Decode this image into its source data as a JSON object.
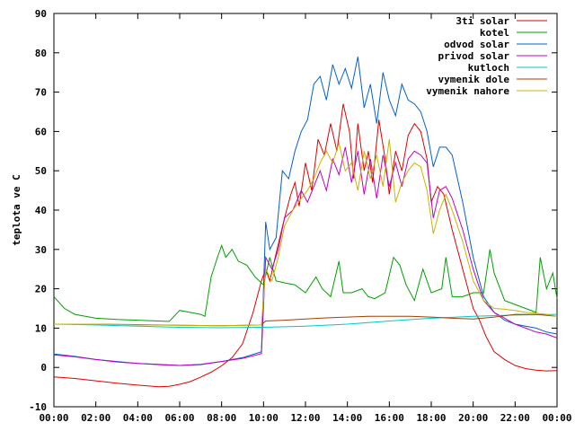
{
  "chart_data": {
    "type": "line",
    "ylabel": "teplota ve C",
    "ylim": [
      -10,
      90
    ],
    "yticks": [
      -10,
      0,
      10,
      20,
      30,
      40,
      50,
      60,
      70,
      80,
      90
    ],
    "xlim": [
      0,
      24
    ],
    "xticks": [
      "00:00",
      "02:00",
      "04:00",
      "06:00",
      "08:00",
      "10:00",
      "12:00",
      "14:00",
      "16:00",
      "18:00",
      "20:00",
      "22:00",
      "00:00"
    ],
    "legend_position": "top-right",
    "grid": false,
    "series": [
      {
        "name": "3ti solar",
        "color": "#e00000",
        "points": [
          [
            0,
            -2.4
          ],
          [
            1,
            -2.8
          ],
          [
            2,
            -3.4
          ],
          [
            3,
            -4.0
          ],
          [
            4,
            -4.5
          ],
          [
            5,
            -4.9
          ],
          [
            5.5,
            -4.8
          ],
          [
            6,
            -4.3
          ],
          [
            6.5,
            -3.6
          ],
          [
            7,
            -2.5
          ],
          [
            7.5,
            -1.2
          ],
          [
            8,
            0.4
          ],
          [
            8.5,
            2.5
          ],
          [
            9,
            6
          ],
          [
            9.5,
            14
          ],
          [
            9.9,
            22
          ],
          [
            10.1,
            25
          ],
          [
            10.3,
            22
          ],
          [
            10.6,
            29
          ],
          [
            11,
            38
          ],
          [
            11.3,
            44
          ],
          [
            11.5,
            47
          ],
          [
            11.7,
            41
          ],
          [
            12,
            52
          ],
          [
            12.3,
            45
          ],
          [
            12.6,
            58
          ],
          [
            12.9,
            54
          ],
          [
            13.2,
            62
          ],
          [
            13.5,
            55
          ],
          [
            13.8,
            67
          ],
          [
            14.1,
            60
          ],
          [
            14.3,
            48
          ],
          [
            14.5,
            62
          ],
          [
            14.8,
            50
          ],
          [
            15,
            55
          ],
          [
            15.2,
            47
          ],
          [
            15.5,
            63
          ],
          [
            15.8,
            53
          ],
          [
            16,
            44
          ],
          [
            16.3,
            55
          ],
          [
            16.6,
            50
          ],
          [
            16.9,
            59
          ],
          [
            17.2,
            62
          ],
          [
            17.5,
            60
          ],
          [
            17.8,
            53
          ],
          [
            18,
            42
          ],
          [
            18.3,
            46
          ],
          [
            18.6,
            44
          ],
          [
            19,
            35
          ],
          [
            19.5,
            25
          ],
          [
            20,
            15
          ],
          [
            20.3,
            12
          ],
          [
            20.6,
            8
          ],
          [
            21,
            4
          ],
          [
            21.5,
            2
          ],
          [
            22,
            0.5
          ],
          [
            22.5,
            -0.3
          ],
          [
            23,
            -0.7
          ],
          [
            23.5,
            -0.9
          ],
          [
            24,
            -0.8
          ]
        ]
      },
      {
        "name": "kotel",
        "color": "#00a000",
        "points": [
          [
            0,
            18
          ],
          [
            0.5,
            15
          ],
          [
            1,
            13.5
          ],
          [
            2,
            12.5
          ],
          [
            3,
            12.2
          ],
          [
            4,
            12
          ],
          [
            5,
            11.8
          ],
          [
            5.5,
            11.7
          ],
          [
            6,
            14.5
          ],
          [
            6.5,
            14
          ],
          [
            7,
            13.5
          ],
          [
            7.2,
            13
          ],
          [
            7.5,
            23
          ],
          [
            7.8,
            28
          ],
          [
            8,
            31
          ],
          [
            8.2,
            28
          ],
          [
            8.5,
            30
          ],
          [
            8.8,
            27
          ],
          [
            9.2,
            26
          ],
          [
            9.6,
            23
          ],
          [
            10,
            21
          ],
          [
            10.3,
            28
          ],
          [
            10.6,
            22
          ],
          [
            11,
            21.5
          ],
          [
            11.5,
            21
          ],
          [
            12,
            19
          ],
          [
            12.5,
            23
          ],
          [
            12.8,
            20
          ],
          [
            13.2,
            18
          ],
          [
            13.6,
            27
          ],
          [
            13.8,
            19
          ],
          [
            14.2,
            19
          ],
          [
            14.7,
            20
          ],
          [
            15,
            18
          ],
          [
            15.3,
            17.5
          ],
          [
            15.8,
            19
          ],
          [
            16.2,
            28
          ],
          [
            16.5,
            26
          ],
          [
            16.8,
            21
          ],
          [
            17.2,
            17
          ],
          [
            17.6,
            25
          ],
          [
            18,
            19
          ],
          [
            18.5,
            20
          ],
          [
            18.7,
            28
          ],
          [
            19,
            18
          ],
          [
            19.5,
            18
          ],
          [
            20,
            19
          ],
          [
            20.5,
            19
          ],
          [
            20.8,
            30
          ],
          [
            21,
            24
          ],
          [
            21.5,
            17
          ],
          [
            22,
            16
          ],
          [
            22.5,
            15
          ],
          [
            23,
            14
          ],
          [
            23.2,
            28
          ],
          [
            23.5,
            20
          ],
          [
            23.8,
            24
          ],
          [
            24,
            17.5
          ]
        ]
      },
      {
        "name": "odvod solar",
        "color": "#0060d0",
        "points": [
          [
            0,
            3.4
          ],
          [
            1,
            2.8
          ],
          [
            2,
            2.0
          ],
          [
            3,
            1.5
          ],
          [
            4,
            1.0
          ],
          [
            5,
            0.8
          ],
          [
            6,
            0.5
          ],
          [
            7,
            0.7
          ],
          [
            8,
            1.5
          ],
          [
            9,
            2.5
          ],
          [
            9.9,
            4
          ],
          [
            10.1,
            37
          ],
          [
            10.3,
            30
          ],
          [
            10.6,
            33
          ],
          [
            10.9,
            50
          ],
          [
            11.2,
            48
          ],
          [
            11.5,
            55
          ],
          [
            11.8,
            60
          ],
          [
            12.1,
            63
          ],
          [
            12.4,
            72
          ],
          [
            12.7,
            74
          ],
          [
            13,
            68
          ],
          [
            13.3,
            77
          ],
          [
            13.6,
            72
          ],
          [
            13.9,
            76
          ],
          [
            14.2,
            71
          ],
          [
            14.5,
            79
          ],
          [
            14.8,
            66
          ],
          [
            15.1,
            72
          ],
          [
            15.4,
            62
          ],
          [
            15.7,
            75
          ],
          [
            16,
            68
          ],
          [
            16.3,
            64
          ],
          [
            16.6,
            72
          ],
          [
            16.9,
            68
          ],
          [
            17.2,
            67
          ],
          [
            17.5,
            65
          ],
          [
            17.8,
            60
          ],
          [
            18.1,
            51
          ],
          [
            18.4,
            56
          ],
          [
            18.7,
            56
          ],
          [
            19,
            54
          ],
          [
            19.5,
            42
          ],
          [
            20,
            28
          ],
          [
            20.5,
            18
          ],
          [
            21,
            14
          ],
          [
            21.5,
            12
          ],
          [
            22,
            11
          ],
          [
            22.5,
            10.5
          ],
          [
            23,
            10
          ],
          [
            23.5,
            9
          ],
          [
            24,
            8.5
          ]
        ]
      },
      {
        "name": "privod solar",
        "color": "#c000c0",
        "points": [
          [
            0,
            3.2
          ],
          [
            1,
            2.7
          ],
          [
            2,
            2.0
          ],
          [
            3,
            1.4
          ],
          [
            4,
            1.0
          ],
          [
            5,
            0.7
          ],
          [
            6,
            0.5
          ],
          [
            7,
            0.8
          ],
          [
            8,
            1.5
          ],
          [
            9,
            2.3
          ],
          [
            9.9,
            3.5
          ],
          [
            10.1,
            28
          ],
          [
            10.4,
            25
          ],
          [
            10.7,
            30
          ],
          [
            11,
            38
          ],
          [
            11.4,
            40
          ],
          [
            11.8,
            45
          ],
          [
            12.1,
            42
          ],
          [
            12.4,
            46
          ],
          [
            12.7,
            50
          ],
          [
            13,
            45
          ],
          [
            13.3,
            53
          ],
          [
            13.6,
            49
          ],
          [
            13.9,
            56
          ],
          [
            14.2,
            47
          ],
          [
            14.5,
            55
          ],
          [
            14.8,
            44
          ],
          [
            15.1,
            53
          ],
          [
            15.4,
            43
          ],
          [
            15.7,
            54
          ],
          [
            16,
            46
          ],
          [
            16.3,
            52
          ],
          [
            16.6,
            46
          ],
          [
            16.9,
            53
          ],
          [
            17.2,
            55
          ],
          [
            17.5,
            54
          ],
          [
            17.8,
            52
          ],
          [
            18.1,
            38
          ],
          [
            18.4,
            45
          ],
          [
            18.7,
            46
          ],
          [
            19,
            43
          ],
          [
            19.5,
            35
          ],
          [
            20,
            25
          ],
          [
            20.5,
            17
          ],
          [
            21,
            14
          ],
          [
            21.5,
            12.5
          ],
          [
            22,
            11
          ],
          [
            22.5,
            10
          ],
          [
            23,
            9
          ],
          [
            23.5,
            8.5
          ],
          [
            24,
            7.5
          ]
        ]
      },
      {
        "name": "kutloch",
        "color": "#00c8c8",
        "points": [
          [
            0,
            11
          ],
          [
            2,
            10.8
          ],
          [
            4,
            10.5
          ],
          [
            6,
            10.2
          ],
          [
            8,
            10.1
          ],
          [
            10,
            10.2
          ],
          [
            12,
            10.5
          ],
          [
            14,
            11
          ],
          [
            16,
            11.8
          ],
          [
            18,
            12.5
          ],
          [
            20,
            13
          ],
          [
            22,
            13.3
          ],
          [
            24,
            13.5
          ]
        ]
      },
      {
        "name": "vymenik dole",
        "color": "#a04000",
        "points": [
          [
            0,
            11
          ],
          [
            2,
            11
          ],
          [
            4,
            10.9
          ],
          [
            6,
            10.7
          ],
          [
            8,
            10.6
          ],
          [
            9.9,
            10.8
          ],
          [
            10.1,
            11.8
          ],
          [
            11,
            12
          ],
          [
            12,
            12.3
          ],
          [
            13,
            12.6
          ],
          [
            14,
            12.8
          ],
          [
            15,
            13
          ],
          [
            16,
            13
          ],
          [
            17,
            13
          ],
          [
            18,
            12.8
          ],
          [
            19,
            12.5
          ],
          [
            20,
            12.3
          ],
          [
            21,
            12.8
          ],
          [
            22,
            13.5
          ],
          [
            23,
            13.5
          ],
          [
            24,
            13
          ]
        ]
      },
      {
        "name": "vymenik nahore",
        "color": "#c8b400",
        "points": [
          [
            0,
            11
          ],
          [
            2,
            11
          ],
          [
            4,
            10.8
          ],
          [
            6,
            10.7
          ],
          [
            8,
            10.6
          ],
          [
            9.9,
            10.8
          ],
          [
            10.1,
            25
          ],
          [
            10.4,
            22
          ],
          [
            10.7,
            28
          ],
          [
            11,
            36
          ],
          [
            11.4,
            40
          ],
          [
            11.8,
            43
          ],
          [
            12.1,
            45
          ],
          [
            12.4,
            48
          ],
          [
            12.7,
            52
          ],
          [
            13,
            55
          ],
          [
            13.3,
            52
          ],
          [
            13.6,
            57
          ],
          [
            13.9,
            50
          ],
          [
            14.2,
            52
          ],
          [
            14.5,
            45
          ],
          [
            14.8,
            55
          ],
          [
            15.1,
            48
          ],
          [
            15.4,
            54
          ],
          [
            15.7,
            46
          ],
          [
            16,
            58
          ],
          [
            16.3,
            42
          ],
          [
            16.6,
            47
          ],
          [
            16.9,
            50
          ],
          [
            17.2,
            52
          ],
          [
            17.5,
            51
          ],
          [
            17.8,
            45
          ],
          [
            18.1,
            34
          ],
          [
            18.4,
            40
          ],
          [
            18.7,
            44
          ],
          [
            19,
            40
          ],
          [
            19.5,
            32
          ],
          [
            20,
            22
          ],
          [
            20.5,
            17
          ],
          [
            21,
            15
          ],
          [
            21.5,
            14.8
          ],
          [
            22,
            14.5
          ],
          [
            22.5,
            14
          ],
          [
            23,
            13.8
          ],
          [
            23.5,
            13.5
          ],
          [
            24,
            13
          ]
        ]
      }
    ]
  }
}
